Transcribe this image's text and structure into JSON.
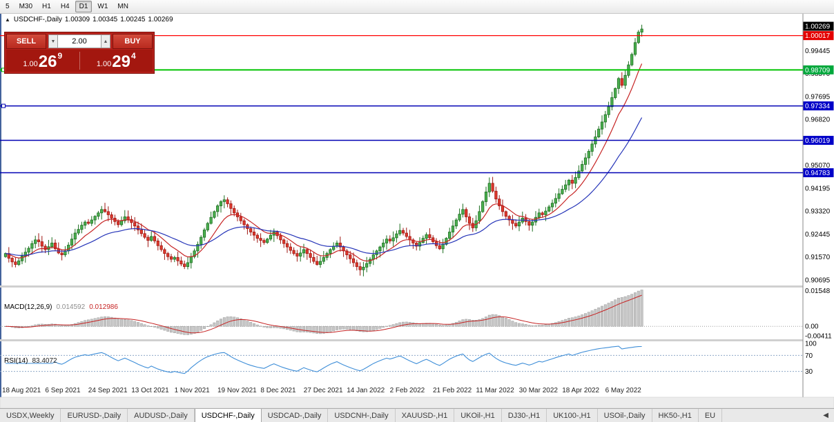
{
  "toolbar": {
    "timeframes": [
      "5",
      "M30",
      "H1",
      "H4",
      "D1",
      "W1",
      "MN"
    ],
    "active": "D1"
  },
  "ohlc": {
    "collapse": "▲",
    "title": "USDCHF-,Daily",
    "open": "1.00309",
    "high": "1.00345",
    "low": "1.00245",
    "close": "1.00269"
  },
  "trade_panel": {
    "sell_label": "SELL",
    "buy_label": "BUY",
    "volume": "2.00",
    "volume_down_icon": "▼",
    "volume_up_icon": "▲",
    "sell_small": "1.00",
    "sell_big": "26",
    "sell_sup": "9",
    "buy_small": "1.00",
    "buy_big": "29",
    "buy_sup": "4"
  },
  "macd_panel": {
    "label": "MACD(12,26,9)",
    "main_value": "0.014592",
    "signal_value": "0.012986"
  },
  "rsi_panel": {
    "label": "RSI(14)",
    "value": "83.4072"
  },
  "tabs": {
    "items": [
      "USDX,Weekly",
      "EURUSD-,Daily",
      "AUDUSD-,Daily",
      "USDCHF-,Daily",
      "USDCAD-,Daily",
      "USDCNH-,Daily",
      "XAUUSD-,H1",
      "UKOil-,H1",
      "DJ30-,H1",
      "UK100-,H1",
      "USOil-,Daily",
      "HK50-,H1",
      "EU"
    ],
    "active": "USDCHF-,Daily",
    "scroll_left_icon": "◀"
  },
  "chart_data": {
    "type": "candlestick",
    "title": "USDCHF-,Daily",
    "ohlc_last": {
      "open": 1.00309,
      "high": 1.00345,
      "low": 1.00245,
      "close": 1.00269
    },
    "ylim": [
      0.9048,
      1.0085
    ],
    "y_ticks": [
      {
        "label": "0.99445",
        "value": 0.99445
      },
      {
        "label": "0.98570",
        "value": 0.9857
      },
      {
        "label": "0.97695",
        "value": 0.97695
      },
      {
        "label": "0.96820",
        "value": 0.9682
      },
      {
        "label": "0.95945",
        "value": 0.95945
      },
      {
        "label": "0.95070",
        "value": 0.9507
      },
      {
        "label": "0.94195",
        "value": 0.94195
      },
      {
        "label": "0.93320",
        "value": 0.9332
      },
      {
        "label": "0.92445",
        "value": 0.92445
      },
      {
        "label": "0.91570",
        "value": 0.9157
      },
      {
        "label": "0.90695",
        "value": 0.90695
      }
    ],
    "last_price_marker": {
      "label": "1.00269",
      "value": 1.00269,
      "bg": "#000000"
    },
    "hlines": [
      {
        "label": "1.00017",
        "value": 1.00017,
        "color": "#ff0000",
        "box": "#e40000",
        "width": 1.3,
        "anchor": false
      },
      {
        "label": "0.98709",
        "value": 0.98709,
        "color": "#00c300",
        "box": "#00a83c",
        "width": 2,
        "anchor": true
      },
      {
        "label": "0.97334",
        "value": 0.97334,
        "color": "#0000b4",
        "box": "#0000c8",
        "width": 1.5,
        "anchor": true
      },
      {
        "label": "0.96019",
        "value": 0.96019,
        "color": "#0000b4",
        "box": "#0000c8",
        "width": 1.5,
        "anchor": false
      },
      {
        "label": "0.94783",
        "value": 0.94783,
        "color": "#0000b4",
        "box": "#0000c8",
        "width": 1.5,
        "anchor": false
      }
    ],
    "x_ticks": {
      "indices": [
        0,
        13,
        26,
        39,
        52,
        65,
        78,
        91,
        104,
        117,
        130,
        143,
        156,
        169,
        182
      ],
      "labels": [
        "18 Aug 2021",
        "6 Sep 2021",
        "24 Sep 2021",
        "13 Oct 2021",
        "1 Nov 2021",
        "19 Nov 2021",
        "8 Dec 2021",
        "27 Dec 2021",
        "14 Jan 2022",
        "2 Feb 2022",
        "21 Feb 2022",
        "11 Mar 2022",
        "30 Mar 2022",
        "18 Apr 2022",
        "6 May 2022"
      ]
    },
    "closes": [
      0.917,
      0.9152,
      0.9138,
      0.9128,
      0.9142,
      0.916,
      0.9175,
      0.919,
      0.9208,
      0.9222,
      0.9215,
      0.9198,
      0.9185,
      0.9196,
      0.921,
      0.9188,
      0.9172,
      0.9165,
      0.918,
      0.9202,
      0.9225,
      0.9248,
      0.9262,
      0.9278,
      0.929,
      0.9285,
      0.9298,
      0.9312,
      0.9325,
      0.9338,
      0.933,
      0.9318,
      0.9305,
      0.9292,
      0.928,
      0.9295,
      0.931,
      0.93,
      0.9288,
      0.9275,
      0.926,
      0.9246,
      0.9232,
      0.922,
      0.9235,
      0.9218,
      0.92,
      0.9185,
      0.917,
      0.9158,
      0.9148,
      0.9155,
      0.9142,
      0.913,
      0.912,
      0.9135,
      0.9158,
      0.918,
      0.9205,
      0.9232,
      0.926,
      0.9285,
      0.9308,
      0.933,
      0.9352,
      0.9368,
      0.9375,
      0.936,
      0.9342,
      0.9325,
      0.931,
      0.9295,
      0.928,
      0.9265,
      0.9252,
      0.924,
      0.9228,
      0.922,
      0.9212,
      0.9225,
      0.924,
      0.9252,
      0.9238,
      0.9222,
      0.9208,
      0.9195,
      0.9182,
      0.917,
      0.916,
      0.9172,
      0.9185,
      0.917,
      0.9155,
      0.914,
      0.9128,
      0.914,
      0.9155,
      0.917,
      0.9185,
      0.9198,
      0.921,
      0.9195,
      0.918,
      0.9165,
      0.915,
      0.9135,
      0.912,
      0.9108,
      0.9118,
      0.9132,
      0.9148,
      0.9165,
      0.918,
      0.9195,
      0.921,
      0.9225,
      0.9218,
      0.923,
      0.9245,
      0.9258,
      0.9248,
      0.9235,
      0.9222,
      0.921,
      0.9198,
      0.9212,
      0.9228,
      0.9242,
      0.923,
      0.9215,
      0.92,
      0.9188,
      0.9205,
      0.9228,
      0.9252,
      0.9275,
      0.9298,
      0.932,
      0.9338,
      0.931,
      0.9285,
      0.9268,
      0.9295,
      0.933,
      0.9368,
      0.9405,
      0.9438,
      0.9408,
      0.9378,
      0.9352,
      0.933,
      0.9312,
      0.9298,
      0.9285,
      0.9275,
      0.929,
      0.9305,
      0.9292,
      0.9278,
      0.929,
      0.9308,
      0.9325,
      0.9318,
      0.9332,
      0.9348,
      0.9362,
      0.938,
      0.9398,
      0.9415,
      0.9432,
      0.945,
      0.9438,
      0.946,
      0.9485,
      0.951,
      0.9535,
      0.956,
      0.9588,
      0.9615,
      0.9645,
      0.9672,
      0.97,
      0.973,
      0.9765,
      0.98,
      0.9838,
      0.9812,
      0.985,
      0.989,
      0.993,
      0.9975,
      1.0015,
      1.00269
    ],
    "ma_fast_period": 10,
    "ma_slow_period": 30,
    "macd": {
      "fast": 12,
      "slow": 26,
      "signal": 9,
      "display_max": 0.01548,
      "vmax": 0.0165,
      "vmin": -0.0055,
      "axis": [
        {
          "label": "0.01548",
          "value": 0.01548
        },
        {
          "label": "0.00",
          "value": 0
        },
        {
          "label": "-0.00411",
          "value": -0.00411
        }
      ]
    },
    "rsi": {
      "period": 14,
      "levels": [
        {
          "label": "100",
          "value": 100,
          "dotted": false
        },
        {
          "label": "70",
          "value": 70,
          "dotted": true
        },
        {
          "label": "30",
          "value": 30,
          "dotted": true
        }
      ]
    },
    "colors": {
      "bull_fill": "#4caf50",
      "bull_stroke": "#1b6e1f",
      "bear_fill": "#df3a2e",
      "bear_stroke": "#9e1510",
      "ma_fast": "#c62323",
      "ma_slow": "#2534b8",
      "macd_hist": "#c6c6c6",
      "macd_hist_stroke": "#9b9b9b",
      "macd_signal": "#c62323",
      "rsi_line": "#3e8ed8",
      "axis_text": "#000000",
      "date_text": "#222222",
      "window_edge": "#44639c"
    }
  }
}
